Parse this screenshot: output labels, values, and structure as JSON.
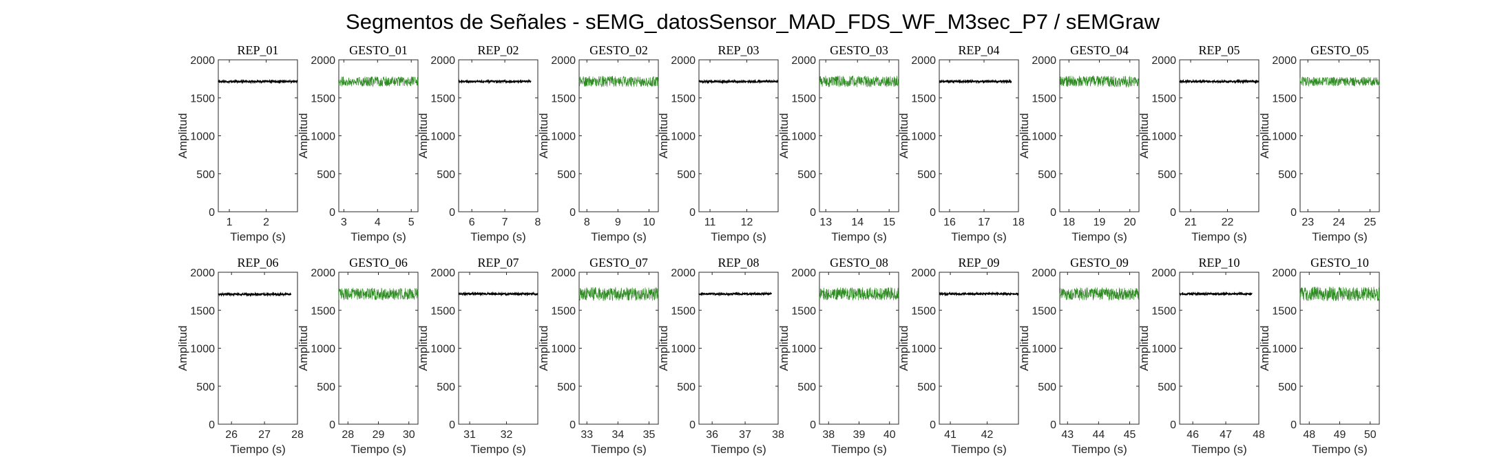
{
  "figure_title": "Segmentos de Señales - sEMG_datosSensor_MAD_FDS_WF_M3sec_P7 / sEMGraw",
  "colors": {
    "rep": "#000000",
    "gesto": "#2e8b22",
    "axis": "#262626"
  },
  "chart_data": [
    {
      "type": "line",
      "title": "REP_01",
      "xlabel": "Tiempo (s)",
      "ylabel": "Amplitud",
      "xlim": [
        0.7,
        2.85
      ],
      "ylim": [
        0,
        2000
      ],
      "xticks": [
        1,
        2
      ],
      "yticks": [
        0,
        500,
        1000,
        1500,
        2000
      ],
      "grid": false,
      "series": [
        {
          "color": "rep",
          "x": [
            0.7,
            2.85
          ],
          "y": [
            1715,
            1715
          ],
          "noise": 12
        }
      ]
    },
    {
      "type": "line",
      "title": "GESTO_01",
      "xlabel": "Tiempo (s)",
      "ylabel": "Amplitud",
      "xlim": [
        2.85,
        5.2
      ],
      "ylim": [
        0,
        2000
      ],
      "xticks": [
        3,
        4,
        5
      ],
      "yticks": [
        0,
        500,
        1000,
        1500,
        2000
      ],
      "grid": false,
      "series": [
        {
          "color": "gesto",
          "x": [
            2.85,
            5.2
          ],
          "y": [
            1715,
            1715
          ],
          "noise": 65
        }
      ]
    },
    {
      "type": "line",
      "title": "REP_02",
      "xlabel": "Tiempo (s)",
      "ylabel": "Amplitud",
      "xlim": [
        5.6,
        8
      ],
      "ylim": [
        0,
        2000
      ],
      "xticks": [
        6,
        7,
        8
      ],
      "yticks": [
        0,
        500,
        1000,
        1500,
        2000
      ],
      "grid": false,
      "series": [
        {
          "color": "rep",
          "x": [
            5.6,
            7.8
          ],
          "y": [
            1715,
            1715
          ],
          "noise": 12
        }
      ]
    },
    {
      "type": "line",
      "title": "GESTO_02",
      "xlabel": "Tiempo (s)",
      "ylabel": "Amplitud",
      "xlim": [
        7.75,
        10.3
      ],
      "ylim": [
        0,
        2000
      ],
      "xticks": [
        8,
        9,
        10
      ],
      "yticks": [
        0,
        500,
        1000,
        1500,
        2000
      ],
      "grid": false,
      "series": [
        {
          "color": "gesto",
          "x": [
            7.75,
            10.3
          ],
          "y": [
            1715,
            1715
          ],
          "noise": 70
        }
      ]
    },
    {
      "type": "line",
      "title": "REP_03",
      "xlabel": "Tiempo (s)",
      "ylabel": "Amplitud",
      "xlim": [
        10.7,
        12.85
      ],
      "ylim": [
        0,
        2000
      ],
      "xticks": [
        11,
        12
      ],
      "yticks": [
        0,
        500,
        1000,
        1500,
        2000
      ],
      "grid": false,
      "series": [
        {
          "color": "rep",
          "x": [
            10.7,
            12.85
          ],
          "y": [
            1715,
            1715
          ],
          "noise": 12
        }
      ]
    },
    {
      "type": "line",
      "title": "GESTO_03",
      "xlabel": "Tiempo (s)",
      "ylabel": "Amplitud",
      "xlim": [
        12.8,
        15.3
      ],
      "ylim": [
        0,
        2000
      ],
      "xticks": [
        13,
        14,
        15
      ],
      "yticks": [
        0,
        500,
        1000,
        1500,
        2000
      ],
      "grid": false,
      "series": [
        {
          "color": "gesto",
          "x": [
            12.8,
            15.3
          ],
          "y": [
            1715,
            1715
          ],
          "noise": 75
        }
      ]
    },
    {
      "type": "line",
      "title": "REP_04",
      "xlabel": "Tiempo (s)",
      "ylabel": "Amplitud",
      "xlim": [
        15.7,
        18
      ],
      "ylim": [
        0,
        2000
      ],
      "xticks": [
        16,
        17,
        18
      ],
      "yticks": [
        0,
        500,
        1000,
        1500,
        2000
      ],
      "grid": false,
      "series": [
        {
          "color": "rep",
          "x": [
            15.7,
            17.8
          ],
          "y": [
            1715,
            1715
          ],
          "noise": 12
        }
      ]
    },
    {
      "type": "line",
      "title": "GESTO_04",
      "xlabel": "Tiempo (s)",
      "ylabel": "Amplitud",
      "xlim": [
        17.7,
        20.3
      ],
      "ylim": [
        0,
        2000
      ],
      "xticks": [
        18,
        19,
        20
      ],
      "yticks": [
        0,
        500,
        1000,
        1500,
        2000
      ],
      "grid": false,
      "series": [
        {
          "color": "gesto",
          "x": [
            17.7,
            20.3
          ],
          "y": [
            1715,
            1715
          ],
          "noise": 75
        }
      ]
    },
    {
      "type": "line",
      "title": "REP_05",
      "xlabel": "Tiempo (s)",
      "ylabel": "Amplitud",
      "xlim": [
        20.7,
        22.85
      ],
      "ylim": [
        0,
        2000
      ],
      "xticks": [
        21,
        22
      ],
      "yticks": [
        0,
        500,
        1000,
        1500,
        2000
      ],
      "grid": false,
      "series": [
        {
          "color": "rep",
          "x": [
            20.7,
            22.85
          ],
          "y": [
            1715,
            1715
          ],
          "noise": 12
        }
      ]
    },
    {
      "type": "line",
      "title": "GESTO_05",
      "xlabel": "Tiempo (s)",
      "ylabel": "Amplitud",
      "xlim": [
        22.75,
        25.3
      ],
      "ylim": [
        0,
        2000
      ],
      "xticks": [
        23,
        24,
        25
      ],
      "yticks": [
        0,
        500,
        1000,
        1500,
        2000
      ],
      "grid": false,
      "series": [
        {
          "color": "gesto",
          "x": [
            22.75,
            25.3
          ],
          "y": [
            1715,
            1715
          ],
          "noise": 60
        }
      ]
    },
    {
      "type": "line",
      "title": "REP_06",
      "xlabel": "Tiempo (s)",
      "ylabel": "Amplitud",
      "xlim": [
        25.6,
        28
      ],
      "ylim": [
        0,
        2000
      ],
      "xticks": [
        26,
        27,
        28
      ],
      "yticks": [
        0,
        500,
        1000,
        1500,
        2000
      ],
      "grid": false,
      "series": [
        {
          "color": "rep",
          "x": [
            25.6,
            27.8
          ],
          "y": [
            1710,
            1710
          ],
          "noise": 12
        }
      ]
    },
    {
      "type": "line",
      "title": "GESTO_06",
      "xlabel": "Tiempo (s)",
      "ylabel": "Amplitud",
      "xlim": [
        27.7,
        30.3
      ],
      "ylim": [
        0,
        2000
      ],
      "xticks": [
        28,
        29,
        30
      ],
      "yticks": [
        0,
        500,
        1000,
        1500,
        2000
      ],
      "grid": false,
      "series": [
        {
          "color": "gesto",
          "x": [
            27.7,
            30.3
          ],
          "y": [
            1715,
            1715
          ],
          "noise": 80
        }
      ]
    },
    {
      "type": "line",
      "title": "REP_07",
      "xlabel": "Tiempo (s)",
      "ylabel": "Amplitud",
      "xlim": [
        30.7,
        32.85
      ],
      "ylim": [
        0,
        2000
      ],
      "xticks": [
        31,
        32
      ],
      "yticks": [
        0,
        500,
        1000,
        1500,
        2000
      ],
      "grid": false,
      "series": [
        {
          "color": "rep",
          "x": [
            30.7,
            32.85
          ],
          "y": [
            1715,
            1715
          ],
          "noise": 12
        }
      ]
    },
    {
      "type": "line",
      "title": "GESTO_07",
      "xlabel": "Tiempo (s)",
      "ylabel": "Amplitud",
      "xlim": [
        32.75,
        35.3
      ],
      "ylim": [
        0,
        2000
      ],
      "xticks": [
        33,
        34,
        35
      ],
      "yticks": [
        0,
        500,
        1000,
        1500,
        2000
      ],
      "grid": false,
      "series": [
        {
          "color": "gesto",
          "x": [
            32.75,
            35.3
          ],
          "y": [
            1715,
            1715
          ],
          "noise": 90
        }
      ]
    },
    {
      "type": "line",
      "title": "REP_08",
      "xlabel": "Tiempo (s)",
      "ylabel": "Amplitud",
      "xlim": [
        35.6,
        38
      ],
      "ylim": [
        0,
        2000
      ],
      "xticks": [
        36,
        37,
        38
      ],
      "yticks": [
        0,
        500,
        1000,
        1500,
        2000
      ],
      "grid": false,
      "series": [
        {
          "color": "rep",
          "x": [
            35.6,
            37.8
          ],
          "y": [
            1715,
            1715
          ],
          "noise": 12
        }
      ]
    },
    {
      "type": "line",
      "title": "GESTO_08",
      "xlabel": "Tiempo (s)",
      "ylabel": "Amplitud",
      "xlim": [
        37.7,
        40.3
      ],
      "ylim": [
        0,
        2000
      ],
      "xticks": [
        38,
        39,
        40
      ],
      "yticks": [
        0,
        500,
        1000,
        1500,
        2000
      ],
      "grid": false,
      "series": [
        {
          "color": "gesto",
          "x": [
            37.7,
            40.3
          ],
          "y": [
            1715,
            1715
          ],
          "noise": 85
        }
      ]
    },
    {
      "type": "line",
      "title": "REP_09",
      "xlabel": "Tiempo (s)",
      "ylabel": "Amplitud",
      "xlim": [
        40.7,
        42.85
      ],
      "ylim": [
        0,
        2000
      ],
      "xticks": [
        41,
        42
      ],
      "yticks": [
        0,
        500,
        1000,
        1500,
        2000
      ],
      "grid": false,
      "series": [
        {
          "color": "rep",
          "x": [
            40.7,
            42.85
          ],
          "y": [
            1715,
            1715
          ],
          "noise": 12
        }
      ]
    },
    {
      "type": "line",
      "title": "GESTO_09",
      "xlabel": "Tiempo (s)",
      "ylabel": "Amplitud",
      "xlim": [
        42.75,
        45.3
      ],
      "ylim": [
        0,
        2000
      ],
      "xticks": [
        43,
        44,
        45
      ],
      "yticks": [
        0,
        500,
        1000,
        1500,
        2000
      ],
      "grid": false,
      "series": [
        {
          "color": "gesto",
          "x": [
            42.75,
            45.3
          ],
          "y": [
            1715,
            1715
          ],
          "noise": 85
        }
      ]
    },
    {
      "type": "line",
      "title": "REP_10",
      "xlabel": "Tiempo (s)",
      "ylabel": "Amplitud",
      "xlim": [
        45.6,
        48
      ],
      "ylim": [
        0,
        2000
      ],
      "xticks": [
        46,
        47,
        48
      ],
      "yticks": [
        0,
        500,
        1000,
        1500,
        2000
      ],
      "grid": false,
      "series": [
        {
          "color": "rep",
          "x": [
            45.6,
            47.8
          ],
          "y": [
            1715,
            1715
          ],
          "noise": 12
        }
      ]
    },
    {
      "type": "line",
      "title": "GESTO_10",
      "xlabel": "Tiempo (s)",
      "ylabel": "Amplitud",
      "xlim": [
        47.7,
        50.3
      ],
      "ylim": [
        0,
        2000
      ],
      "xticks": [
        48,
        49,
        50
      ],
      "yticks": [
        0,
        500,
        1000,
        1500,
        2000
      ],
      "grid": false,
      "series": [
        {
          "color": "gesto",
          "x": [
            47.7,
            50.3
          ],
          "y": [
            1715,
            1715
          ],
          "noise": 95
        }
      ]
    }
  ]
}
